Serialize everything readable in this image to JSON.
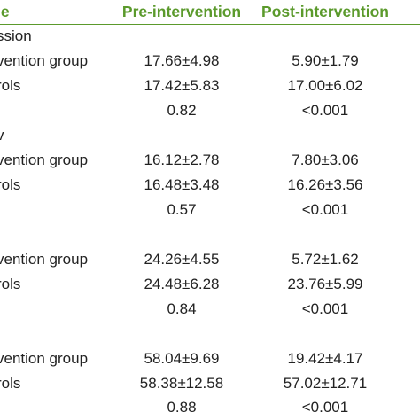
{
  "header": {
    "variable_label": "le",
    "pre_label": "Pre-intervention",
    "post_label": "Post-intervention"
  },
  "sections": [
    {
      "title": "ssion",
      "rows": [
        {
          "label": "vention group",
          "pre": "17.66±4.98",
          "post": "5.90±1.79"
        },
        {
          "label": "rols",
          "pre": "17.42±5.83",
          "post": "17.00±6.02"
        },
        {
          "label": "",
          "pre": "0.82",
          "post": "<0.001"
        }
      ]
    },
    {
      "title": "v",
      "rows": [
        {
          "label": "vention group",
          "pre": "16.12±2.78",
          "post": "7.80±3.06"
        },
        {
          "label": "rols",
          "pre": "16.48±3.48",
          "post": "16.26±3.56"
        },
        {
          "label": "",
          "pre": "0.57",
          "post": "<0.001"
        }
      ]
    },
    {
      "title": "",
      "rows": [
        {
          "label": "vention group",
          "pre": "24.26±4.55",
          "post": "5.72±1.62"
        },
        {
          "label": "rols",
          "pre": "24.48±6.28",
          "post": "23.76±5.99"
        },
        {
          "label": "",
          "pre": "0.84",
          "post": "<0.001"
        }
      ]
    },
    {
      "title": "",
      "rows": [
        {
          "label": "vention group",
          "pre": "58.04±9.69",
          "post": "19.42±4.17"
        },
        {
          "label": "rols",
          "pre": "58.38±12.58",
          "post": "57.02±12.71"
        },
        {
          "label": "",
          "pre": "0.88",
          "post": "<0.001"
        }
      ]
    }
  ]
}
